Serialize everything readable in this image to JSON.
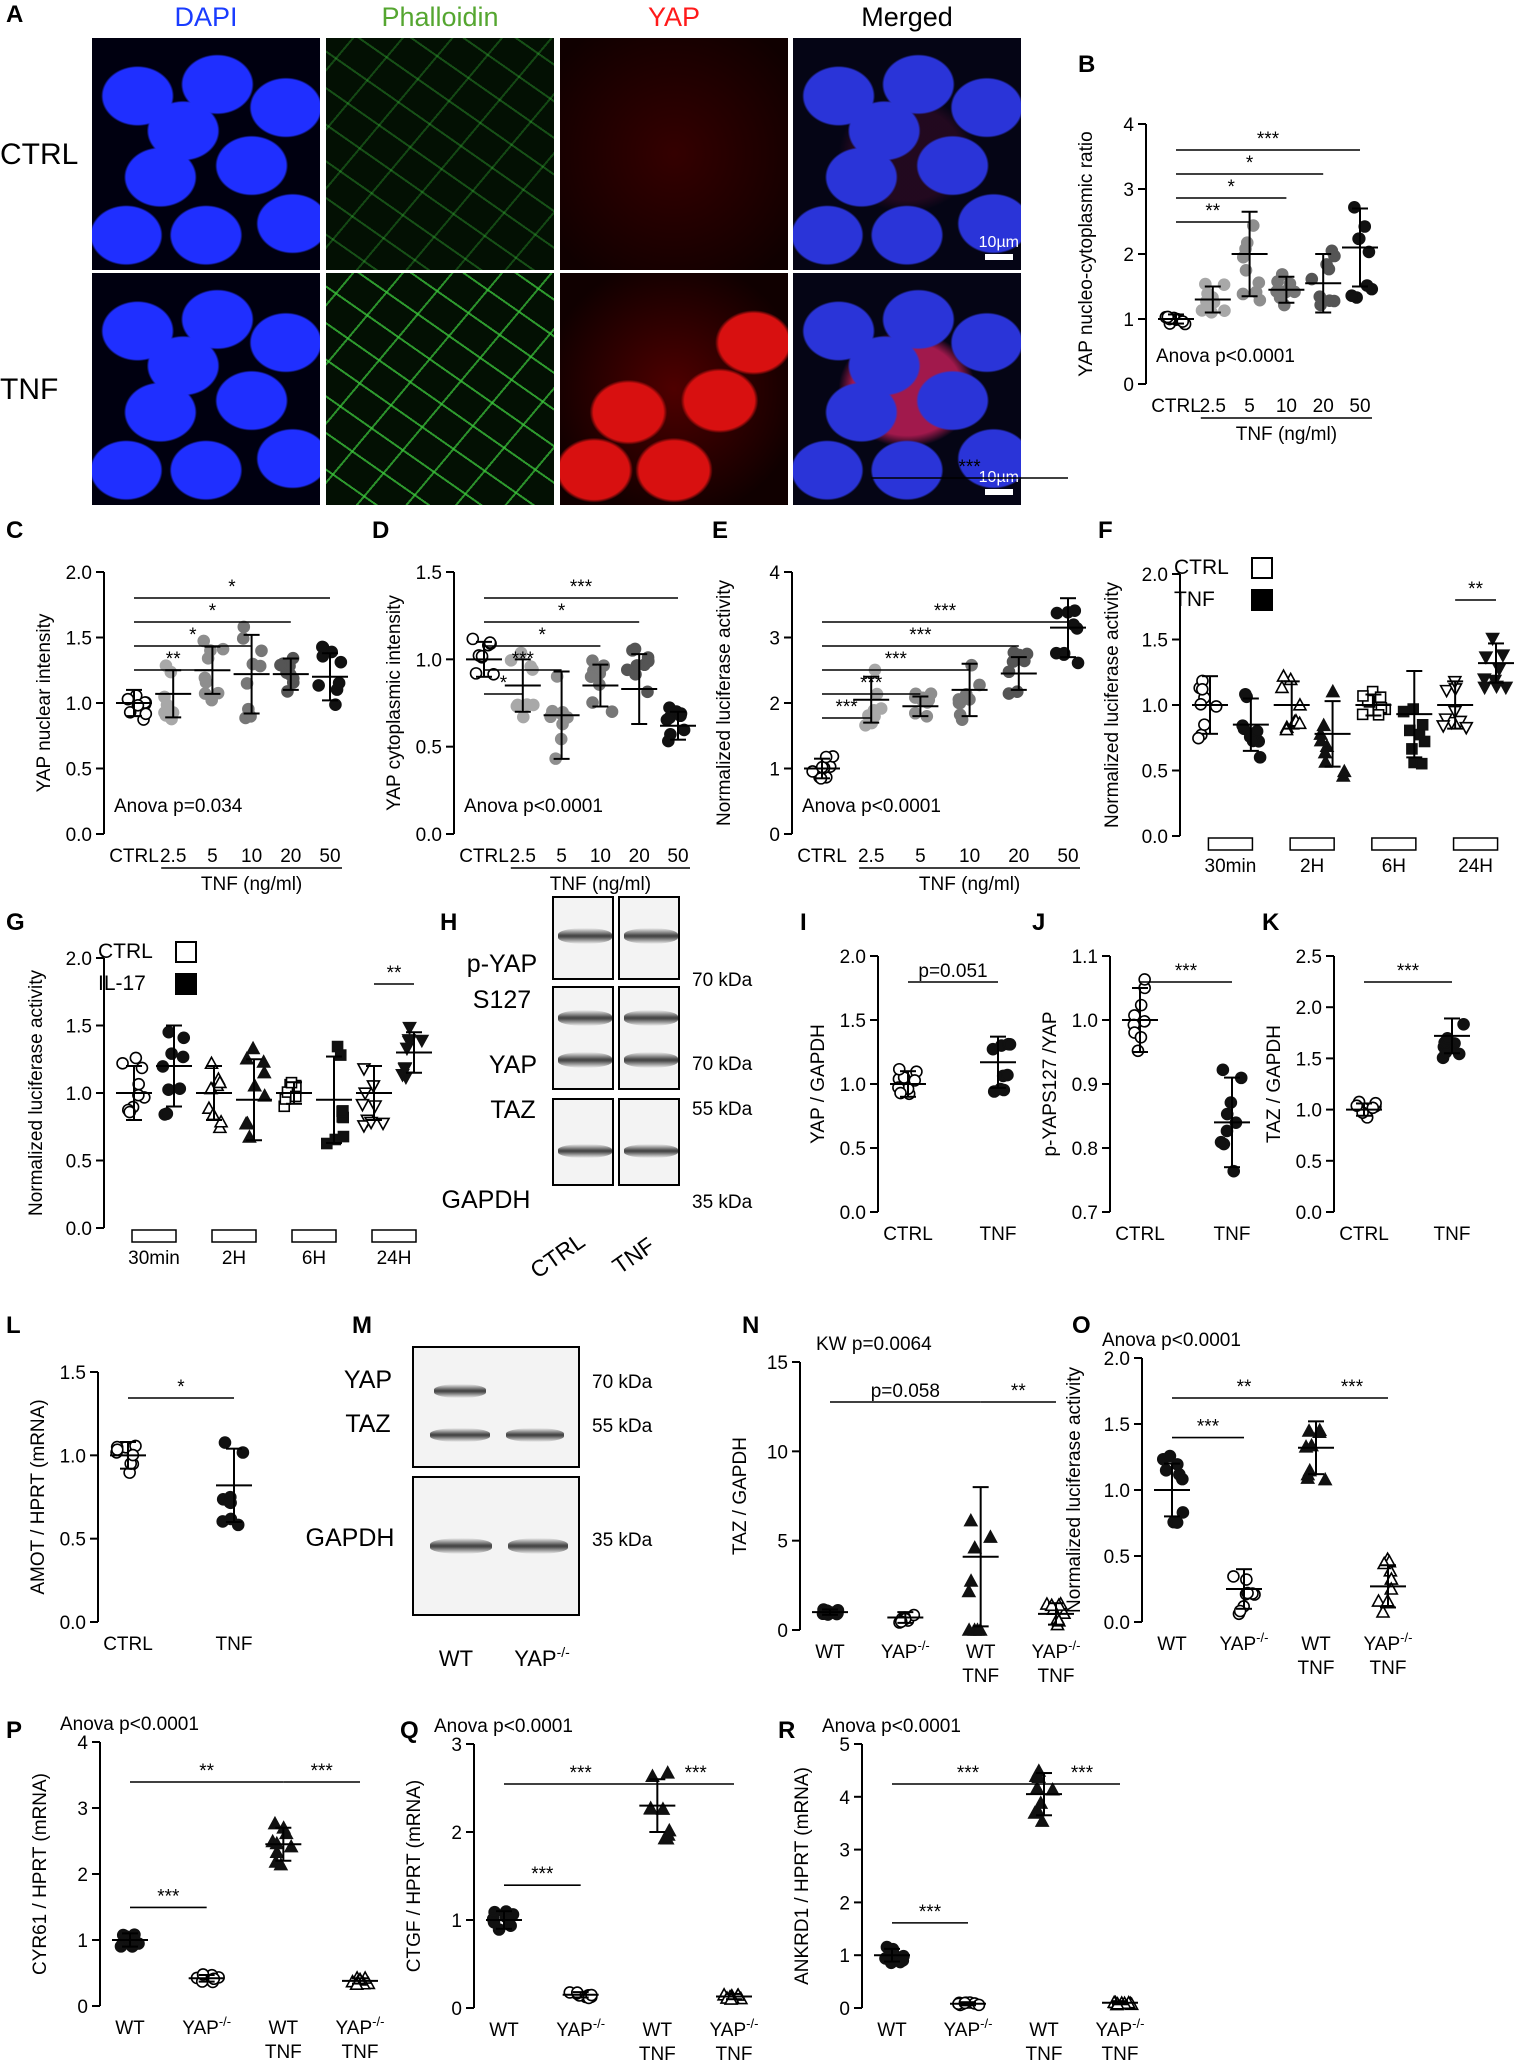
{
  "panel_letters": [
    "A",
    "B",
    "C",
    "D",
    "E",
    "F",
    "G",
    "H",
    "I",
    "J",
    "K",
    "L",
    "M",
    "N",
    "O",
    "P",
    "Q",
    "R"
  ],
  "micrograph": {
    "channels": [
      "DAPI",
      "Phalloidin",
      "YAP",
      "Merged"
    ],
    "channel_colors": [
      "#1a3cff",
      "#55a630",
      "#ff1a1a",
      "#000000"
    ],
    "rows": [
      "CTRL",
      "TNF"
    ],
    "scale_bar": "10µm"
  },
  "blot_H": {
    "labels": [
      "p-YAP\nS127",
      "YAP",
      "TAZ",
      "GAPDH"
    ],
    "sizes": [
      "70 kDa",
      "70 kDa",
      "55 kDa",
      "35 kDa"
    ],
    "lanes": [
      "CTRL",
      "TNF"
    ]
  },
  "blot_M": {
    "labels": [
      "YAP",
      "TAZ",
      "GAPDH"
    ],
    "sizes": [
      "70 kDa",
      "55 kDa",
      "35 kDa"
    ],
    "lanes": [
      "WT",
      "YAP-/-"
    ]
  },
  "chart_data": [
    {
      "id": "B",
      "type": "scatter",
      "ylabel": "YAP nucleo-cytoplasmic ratio",
      "ylim": [
        0,
        4
      ],
      "yticks": [
        "0",
        "1",
        "2",
        "3",
        "4"
      ],
      "categories": [
        "CTRL",
        "2.5",
        "5",
        "10",
        "20",
        "50"
      ],
      "group_label": "TNF (ng/ml)",
      "stat": "Anova p<0.0001",
      "means": [
        1.0,
        1.3,
        2.0,
        1.45,
        1.55,
        2.1
      ],
      "sds": [
        0.07,
        0.2,
        0.65,
        0.2,
        0.45,
        0.6
      ],
      "sig": [
        {
          "from": 0,
          "to": 2,
          "label": "**"
        },
        {
          "from": 0,
          "to": 3,
          "label": "*"
        },
        {
          "from": 0,
          "to": 4,
          "label": "*"
        },
        {
          "from": 0,
          "to": 5,
          "label": "***"
        }
      ]
    },
    {
      "id": "C",
      "type": "scatter",
      "ylabel": "YAP nuclear intensity",
      "ylim": [
        0,
        2
      ],
      "yticks": [
        "0.0",
        "0.5",
        "1.0",
        "1.5",
        "2.0"
      ],
      "categories": [
        "CTRL",
        "2.5",
        "5",
        "10",
        "20",
        "50"
      ],
      "group_label": "TNF (ng/ml)",
      "stat": "Anova p=0.034",
      "means": [
        1.0,
        1.07,
        1.25,
        1.22,
        1.22,
        1.2
      ],
      "sds": [
        0.1,
        0.18,
        0.18,
        0.3,
        0.12,
        0.18
      ],
      "sig": [
        {
          "from": 0,
          "to": 2,
          "label": "**"
        },
        {
          "from": 0,
          "to": 3,
          "label": "*"
        },
        {
          "from": 0,
          "to": 4,
          "label": "*"
        },
        {
          "from": 0,
          "to": 5,
          "label": "*"
        }
      ]
    },
    {
      "id": "D",
      "type": "scatter",
      "ylabel": "YAP cytoplasmic intensity",
      "ylim": [
        0,
        1.5
      ],
      "yticks": [
        "0.0",
        "0.5",
        "1.0",
        "1.5"
      ],
      "categories": [
        "CTRL",
        "2.5",
        "5",
        "10",
        "20",
        "50"
      ],
      "group_label": "TNF (ng/ml)",
      "stat": "Anova p<0.0001",
      "means": [
        1.0,
        0.85,
        0.68,
        0.85,
        0.83,
        0.62
      ],
      "sds": [
        0.1,
        0.15,
        0.25,
        0.12,
        0.2,
        0.08
      ],
      "sig": [
        {
          "from": 0,
          "to": 1,
          "label": "*"
        },
        {
          "from": 0,
          "to": 2,
          "label": "***"
        },
        {
          "from": 0,
          "to": 3,
          "label": "*"
        },
        {
          "from": 0,
          "to": 4,
          "label": "*"
        },
        {
          "from": 0,
          "to": 5,
          "label": "***"
        }
      ]
    },
    {
      "id": "E",
      "type": "scatter",
      "ylabel": "Normalized luciferase activity",
      "ylim": [
        0,
        4
      ],
      "yticks": [
        "0",
        "1",
        "2",
        "3",
        "4"
      ],
      "categories": [
        "CTRL",
        "2.5",
        "5",
        "10",
        "20",
        "50"
      ],
      "group_label": "TNF (ng/ml)",
      "stat": "Anova p<0.0001",
      "means": [
        1.0,
        2.05,
        1.95,
        2.2,
        2.45,
        3.15
      ],
      "sds": [
        0.15,
        0.35,
        0.15,
        0.4,
        0.25,
        0.45
      ],
      "sig": [
        {
          "from": 0,
          "to": 1,
          "label": "***"
        },
        {
          "from": 0,
          "to": 2,
          "label": "***"
        },
        {
          "from": 0,
          "to": 3,
          "label": "***"
        },
        {
          "from": 0,
          "to": 4,
          "label": "***"
        },
        {
          "from": 0,
          "to": 5,
          "label": "***"
        },
        {
          "from": 1,
          "to": 5,
          "label": "***"
        }
      ]
    },
    {
      "id": "F",
      "type": "scatter",
      "ylabel": "Normalized luciferase activity",
      "ylim": [
        0,
        2
      ],
      "yticks": [
        "0.0",
        "0.5",
        "1.0",
        "1.5",
        "2.0"
      ],
      "categories": [
        "30min",
        "2H",
        "6H",
        "24H"
      ],
      "legend": [
        "CTRL",
        "TNF"
      ],
      "means": [
        1.0,
        0.85,
        1.0,
        0.78,
        1.0,
        0.93,
        1.0,
        1.32
      ],
      "sds": [
        0.22,
        0.2,
        0.18,
        0.25,
        0.08,
        0.33,
        0.18,
        0.15
      ],
      "sig": [
        {
          "from": 6,
          "to": 7,
          "label": "**"
        }
      ]
    },
    {
      "id": "G",
      "type": "scatter",
      "ylabel": "Normalized luciferase activity",
      "ylim": [
        0,
        2
      ],
      "yticks": [
        "0.0",
        "0.5",
        "1.0",
        "1.5",
        "2.0"
      ],
      "categories": [
        "30min",
        "2H",
        "6H",
        "24H"
      ],
      "legend": [
        "CTRL",
        "IL-17"
      ],
      "means": [
        1.0,
        1.2,
        1.0,
        0.95,
        1.0,
        0.95,
        1.0,
        1.3
      ],
      "sds": [
        0.2,
        0.3,
        0.2,
        0.3,
        0.08,
        0.32,
        0.2,
        0.15
      ],
      "sig": [
        {
          "from": 6,
          "to": 7,
          "label": "**"
        }
      ]
    },
    {
      "id": "I",
      "type": "scatter",
      "ylabel": "YAP / GAPDH",
      "ylim": [
        0,
        2
      ],
      "yticks": [
        "0.0",
        "0.5",
        "1.0",
        "1.5",
        "2.0"
      ],
      "categories": [
        "CTRL",
        "TNF"
      ],
      "means": [
        1.0,
        1.17
      ],
      "sds": [
        0.1,
        0.2
      ],
      "sig": [
        {
          "from": 0,
          "to": 1,
          "label": "p=0.051"
        }
      ]
    },
    {
      "id": "J",
      "type": "scatter",
      "ylabel": "p-YAPS127 /YAP",
      "ylim": [
        0.7,
        1.1
      ],
      "yticks": [
        "0.7",
        "0.8",
        "0.9",
        "1.0",
        "1.1"
      ],
      "categories": [
        "CTRL",
        "TNF"
      ],
      "means": [
        1.0,
        0.84
      ],
      "sds": [
        0.05,
        0.07
      ],
      "sig": [
        {
          "from": 0,
          "to": 1,
          "label": "***"
        }
      ]
    },
    {
      "id": "K",
      "type": "scatter",
      "ylabel": "TAZ / GAPDH",
      "ylim": [
        0,
        2.5
      ],
      "yticks": [
        "0.0",
        "0.5",
        "1.0",
        "1.5",
        "2.0",
        "2.5"
      ],
      "categories": [
        "CTRL",
        "TNF"
      ],
      "means": [
        1.0,
        1.72
      ],
      "sds": [
        0.06,
        0.17
      ],
      "sig": [
        {
          "from": 0,
          "to": 1,
          "label": "***"
        }
      ]
    },
    {
      "id": "L",
      "type": "scatter",
      "ylabel": "AMOT / HPRT (mRNA)",
      "ylim": [
        0,
        1.5
      ],
      "yticks": [
        "0.0",
        "0.5",
        "1.0",
        "1.5"
      ],
      "categories": [
        "CTRL",
        "TNF"
      ],
      "means": [
        1.0,
        0.82
      ],
      "sds": [
        0.08,
        0.22
      ],
      "sig": [
        {
          "from": 0,
          "to": 1,
          "label": "*"
        }
      ]
    },
    {
      "id": "N",
      "type": "scatter",
      "ylabel": "TAZ / GAPDH",
      "ylim": [
        0,
        15
      ],
      "yticks": [
        "0",
        "5",
        "10",
        "15"
      ],
      "categories": [
        "WT",
        "YAP-/-",
        "WT\nTNF",
        "YAP-/-\nTNF"
      ],
      "stat": "KW p=0.0064",
      "means": [
        1.0,
        0.7,
        4.1,
        0.9
      ],
      "sds": [
        0.15,
        0.3,
        3.9,
        0.6
      ],
      "sig": [
        {
          "from": 0,
          "to": 2,
          "label": "p=0.058"
        },
        {
          "from": 2,
          "to": 3,
          "label": "**"
        }
      ]
    },
    {
      "id": "O",
      "type": "scatter",
      "ylabel": "Normalized luciferase activity",
      "ylim": [
        0,
        2
      ],
      "yticks": [
        "0.0",
        "0.5",
        "1.0",
        "1.5",
        "2.0"
      ],
      "categories": [
        "WT",
        "YAP-/-",
        "WT\nTNF",
        "YAP-/-\nTNF"
      ],
      "stat": "Anova p<0.0001",
      "means": [
        1.0,
        0.25,
        1.32,
        0.27
      ],
      "sds": [
        0.2,
        0.15,
        0.2,
        0.16
      ],
      "sig": [
        {
          "from": 0,
          "to": 1,
          "label": "***"
        },
        {
          "from": 0,
          "to": 2,
          "label": "**"
        },
        {
          "from": 2,
          "to": 3,
          "label": "***"
        }
      ]
    },
    {
      "id": "P",
      "type": "scatter",
      "ylabel": "CYR61 / HPRT (mRNA)",
      "ylim": [
        0,
        4
      ],
      "yticks": [
        "0",
        "1",
        "2",
        "3",
        "4"
      ],
      "categories": [
        "WT",
        "YAP-/-",
        "WT\nTNF",
        "YAP-/-\nTNF"
      ],
      "stat": "Anova p<0.0001",
      "means": [
        1.0,
        0.42,
        2.45,
        0.38
      ],
      "sds": [
        0.1,
        0.05,
        0.25,
        0.04
      ],
      "sig": [
        {
          "from": 0,
          "to": 1,
          "label": "***"
        },
        {
          "from": 0,
          "to": 2,
          "label": "**"
        },
        {
          "from": 2,
          "to": 3,
          "label": "***"
        }
      ]
    },
    {
      "id": "Q",
      "type": "scatter",
      "ylabel": "CTGF / HPRT (mRNA)",
      "ylim": [
        0,
        3
      ],
      "yticks": [
        "0",
        "1",
        "2",
        "3"
      ],
      "categories": [
        "WT",
        "YAP-/-",
        "WT\nTNF",
        "YAP-/-\nTNF"
      ],
      "stat": "Anova p<0.0001",
      "means": [
        1.0,
        0.15,
        2.3,
        0.13
      ],
      "sds": [
        0.1,
        0.03,
        0.3,
        0.03
      ],
      "sig": [
        {
          "from": 0,
          "to": 1,
          "label": "***"
        },
        {
          "from": 0,
          "to": 2,
          "label": "***"
        },
        {
          "from": 2,
          "to": 3,
          "label": "***"
        }
      ]
    },
    {
      "id": "R",
      "type": "scatter",
      "ylabel": "ANKRD1 / HPRT (mRNA)",
      "ylim": [
        0,
        5
      ],
      "yticks": [
        "0",
        "1",
        "2",
        "3",
        "4",
        "5"
      ],
      "categories": [
        "WT",
        "YAP-/-",
        "WT\nTNF",
        "YAP-/-\nTNF"
      ],
      "stat": "Anova p<0.0001",
      "means": [
        1.0,
        0.08,
        4.05,
        0.1
      ],
      "sds": [
        0.12,
        0.03,
        0.4,
        0.03
      ],
      "sig": [
        {
          "from": 0,
          "to": 1,
          "label": "***"
        },
        {
          "from": 0,
          "to": 2,
          "label": "***"
        },
        {
          "from": 2,
          "to": 3,
          "label": "***"
        }
      ]
    }
  ]
}
